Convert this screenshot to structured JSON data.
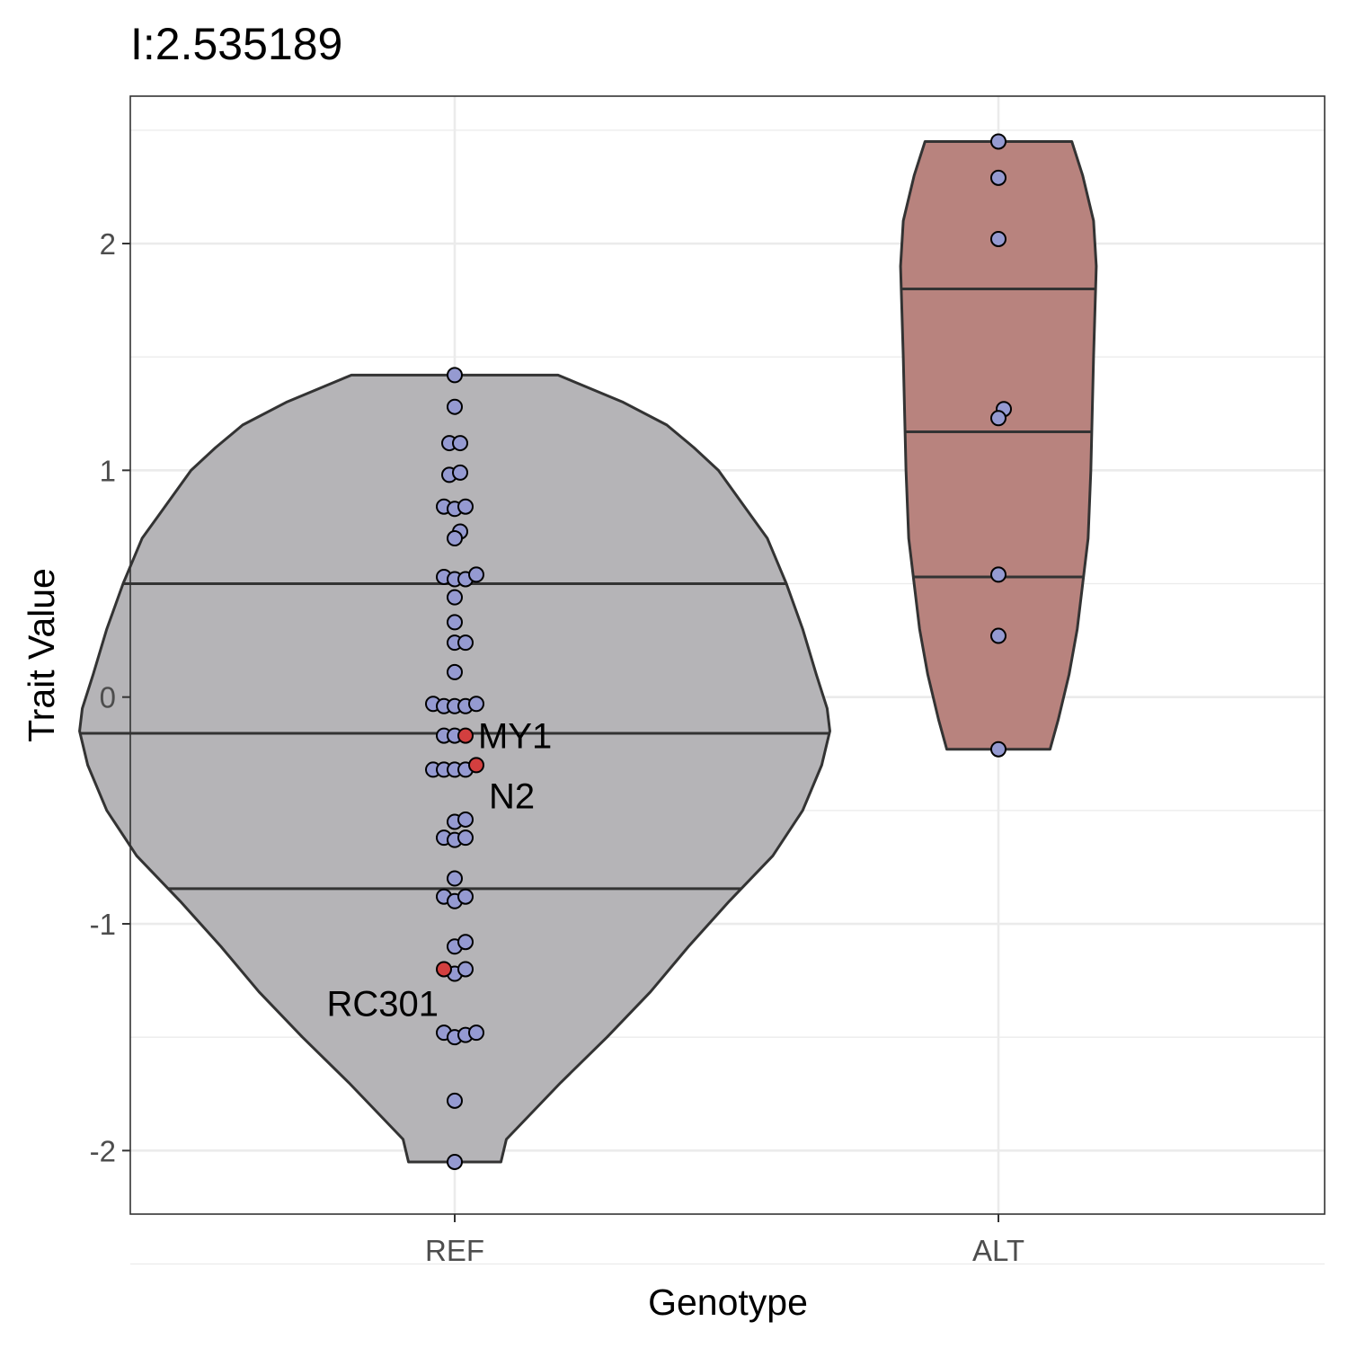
{
  "chart_data": {
    "type": "violin",
    "title": "I:2.535189",
    "xlabel": "Genotype",
    "ylabel": "Trait Value",
    "categories": [
      "REF",
      "ALT"
    ],
    "ylim": [
      -2.28,
      2.65
    ],
    "yticks": [
      -2,
      -1,
      0,
      1,
      2
    ],
    "ytick_labels": [
      "-2",
      "-1",
      "0",
      "1",
      "2"
    ],
    "grid": true,
    "colors": {
      "ref_fill": "#b5b4b7",
      "alt_fill": "#b8837e",
      "outline": "#333333",
      "point_fill": "#959ad1",
      "highlight_fill": "#d33f3f",
      "grid": "#ebebeb",
      "panel_border": "#333333"
    },
    "violins": [
      {
        "category": "REF",
        "quantiles": [
          -0.845,
          -0.16,
          0.5
        ],
        "density_profile": [
          [
            1.42,
            0.38
          ],
          [
            1.3,
            0.62
          ],
          [
            1.2,
            0.78
          ],
          [
            1.1,
            0.88
          ],
          [
            1.0,
            0.97
          ],
          [
            0.9,
            1.03
          ],
          [
            0.8,
            1.09
          ],
          [
            0.7,
            1.15
          ],
          [
            0.5,
            1.22
          ],
          [
            0.3,
            1.28
          ],
          [
            0.1,
            1.33
          ],
          [
            -0.05,
            1.37
          ],
          [
            -0.15,
            1.38
          ],
          [
            -0.3,
            1.35
          ],
          [
            -0.5,
            1.28
          ],
          [
            -0.7,
            1.17
          ],
          [
            -0.9,
            1.01
          ],
          [
            -1.1,
            0.86
          ],
          [
            -1.3,
            0.72
          ],
          [
            -1.5,
            0.56
          ],
          [
            -1.7,
            0.39
          ],
          [
            -1.85,
            0.27
          ],
          [
            -1.95,
            0.19
          ],
          [
            -2.05,
            0.17
          ]
        ]
      },
      {
        "category": "ALT",
        "quantiles": [
          0.53,
          1.17,
          1.8
        ],
        "density_profile": [
          [
            2.45,
            0.27
          ],
          [
            2.3,
            0.31
          ],
          [
            2.1,
            0.35
          ],
          [
            1.9,
            0.36
          ],
          [
            1.5,
            0.35
          ],
          [
            1.0,
            0.34
          ],
          [
            0.7,
            0.33
          ],
          [
            0.5,
            0.31
          ],
          [
            0.3,
            0.29
          ],
          [
            0.1,
            0.26
          ],
          [
            -0.1,
            0.22
          ],
          [
            -0.23,
            0.19
          ]
        ]
      }
    ],
    "series": [
      {
        "name": "REF",
        "points": [
          {
            "dx": 0,
            "y": 1.42
          },
          {
            "dx": 0,
            "y": 1.28
          },
          {
            "dx": -0.02,
            "y": 1.12
          },
          {
            "dx": 0.02,
            "y": 1.12
          },
          {
            "dx": -0.02,
            "y": 0.98
          },
          {
            "dx": 0.02,
            "y": 0.99
          },
          {
            "dx": -0.04,
            "y": 0.84
          },
          {
            "dx": 0,
            "y": 0.83
          },
          {
            "dx": 0.04,
            "y": 0.84
          },
          {
            "dx": 0.02,
            "y": 0.73
          },
          {
            "dx": 0,
            "y": 0.7
          },
          {
            "dx": -0.04,
            "y": 0.53
          },
          {
            "dx": 0,
            "y": 0.52
          },
          {
            "dx": 0.04,
            "y": 0.52
          },
          {
            "dx": 0.08,
            "y": 0.54
          },
          {
            "dx": 0,
            "y": 0.44
          },
          {
            "dx": 0,
            "y": 0.33
          },
          {
            "dx": 0,
            "y": 0.24
          },
          {
            "dx": 0.04,
            "y": 0.24
          },
          {
            "dx": 0,
            "y": 0.11
          },
          {
            "dx": -0.08,
            "y": -0.03
          },
          {
            "dx": -0.04,
            "y": -0.04
          },
          {
            "dx": 0,
            "y": -0.04
          },
          {
            "dx": 0.04,
            "y": -0.04
          },
          {
            "dx": 0.08,
            "y": -0.03
          },
          {
            "dx": -0.04,
            "y": -0.17
          },
          {
            "dx": 0,
            "y": -0.17
          },
          {
            "dx": -0.08,
            "y": -0.32
          },
          {
            "dx": -0.04,
            "y": -0.32
          },
          {
            "dx": 0,
            "y": -0.32
          },
          {
            "dx": 0.04,
            "y": -0.32
          },
          {
            "dx": 0,
            "y": -0.55
          },
          {
            "dx": 0.04,
            "y": -0.54
          },
          {
            "dx": -0.04,
            "y": -0.62
          },
          {
            "dx": 0,
            "y": -0.63
          },
          {
            "dx": 0.04,
            "y": -0.62
          },
          {
            "dx": 0,
            "y": -0.8
          },
          {
            "dx": -0.04,
            "y": -0.88
          },
          {
            "dx": 0,
            "y": -0.9
          },
          {
            "dx": 0.04,
            "y": -0.88
          },
          {
            "dx": 0,
            "y": -1.1
          },
          {
            "dx": 0.04,
            "y": -1.08
          },
          {
            "dx": 0,
            "y": -1.22
          },
          {
            "dx": 0.04,
            "y": -1.2
          },
          {
            "dx": -0.04,
            "y": -1.48
          },
          {
            "dx": 0,
            "y": -1.5
          },
          {
            "dx": 0.04,
            "y": -1.49
          },
          {
            "dx": 0.08,
            "y": -1.48
          },
          {
            "dx": 0,
            "y": -1.78
          },
          {
            "dx": 0,
            "y": -2.05
          }
        ]
      },
      {
        "name": "ALT",
        "points": [
          {
            "dx": 0,
            "y": 2.45
          },
          {
            "dx": 0,
            "y": 2.29
          },
          {
            "dx": 0,
            "y": 2.02
          },
          {
            "dx": 0.02,
            "y": 1.27
          },
          {
            "dx": 0,
            "y": 1.23
          },
          {
            "dx": 0,
            "y": 0.54
          },
          {
            "dx": 0,
            "y": 0.27
          },
          {
            "dx": 0,
            "y": -0.23
          }
        ]
      }
    ],
    "highlighted": [
      {
        "category": "REF",
        "name": "MY1",
        "dx": 0.04,
        "y": -0.17,
        "label_pos": "right"
      },
      {
        "category": "REF",
        "name": "N2",
        "dx": 0.08,
        "y": -0.3,
        "label_pos": "below-right"
      },
      {
        "category": "REF",
        "name": "RC301",
        "dx": -0.04,
        "y": -1.2,
        "label_pos": "below-left"
      }
    ]
  }
}
